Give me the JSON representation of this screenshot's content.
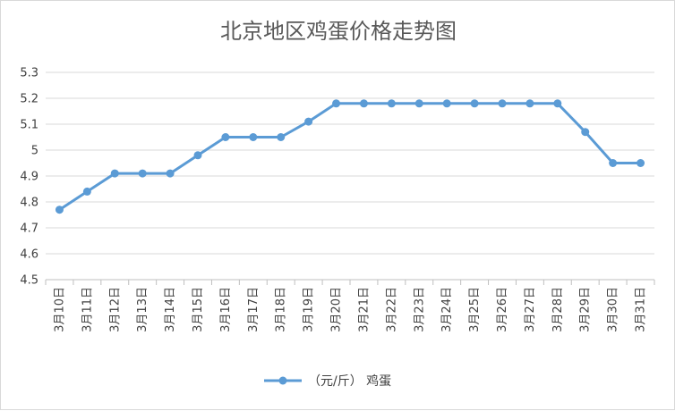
{
  "chart_data": {
    "type": "line",
    "title": "北京地区鸡蛋价格走势图",
    "xlabel": "",
    "ylabel": "",
    "categories": [
      "3月10日",
      "3月11日",
      "3月12日",
      "3月13日",
      "3月14日",
      "3月15日",
      "3月16日",
      "3月17日",
      "3月18日",
      "3月19日",
      "3月20日",
      "3月21日",
      "3月22日",
      "3月23日",
      "3月24日",
      "3月25日",
      "3月26日",
      "3月27日",
      "3月28日",
      "3月29日",
      "3月30日",
      "3月31日"
    ],
    "series": [
      {
        "name": "（元/斤） 鸡蛋",
        "values": [
          4.77,
          4.84,
          4.91,
          4.91,
          4.91,
          4.98,
          5.05,
          5.05,
          5.05,
          5.11,
          5.18,
          5.18,
          5.18,
          5.18,
          5.18,
          5.18,
          5.18,
          5.18,
          5.18,
          5.07,
          4.95,
          4.95
        ],
        "color": "#5b9bd5"
      }
    ],
    "ylim": [
      4.5,
      5.3
    ],
    "yticks": [
      "4.5",
      "4.6",
      "4.7",
      "4.8",
      "4.9",
      "5",
      "5.1",
      "5.2",
      "5.3"
    ],
    "grid": true,
    "legend_position": "bottom"
  }
}
